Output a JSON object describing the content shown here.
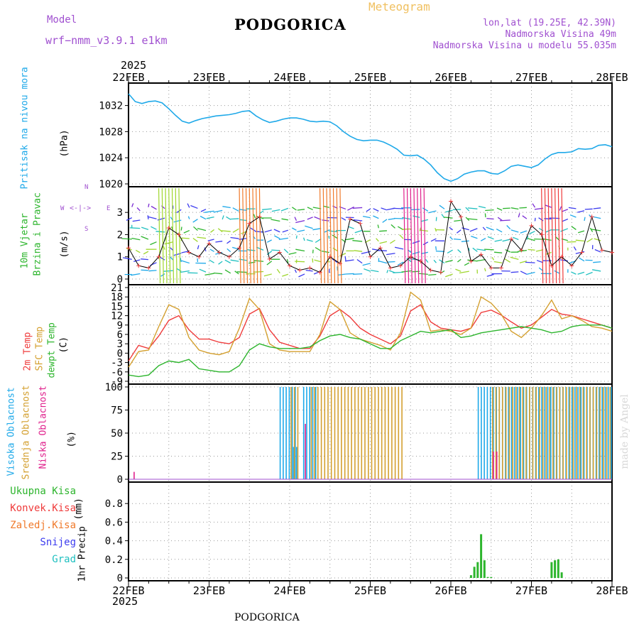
{
  "header": {
    "model_label": "Model",
    "model_name": "wrf−nmm_v3.9.1  e1km",
    "city": "PODGORICA",
    "meteogram": "Meteogram",
    "lonlat": "lon,lat (19.25E, 42.39N)",
    "altitude": "Nadmorska Visina 49m",
    "model_altitude": "Nadmorska Visina u modelu 55.035m",
    "footer_city": "PODGORICA",
    "watermark": "made by Angel"
  },
  "colors": {
    "pressure": "#1fa9e9",
    "temp2m": "#ef3b3b",
    "sfc": "#d4a030",
    "dewpt": "#2db52d",
    "purple": "#a050d0",
    "high_cloud": "#1fa9e9",
    "mid_cloud": "#d4a030",
    "low_cloud": "#e0208c",
    "precip": "#2db52d"
  },
  "chart_data": {
    "type": "line",
    "time_axis": {
      "year": "2025",
      "start": "2025-02-22T00",
      "end": "2025-02-28T00",
      "labels": [
        "22FEB",
        "23FEB",
        "24FEB",
        "25FEB",
        "26FEB",
        "27FEB",
        "28FEB"
      ]
    },
    "panels": [
      {
        "id": "pressure",
        "ylabel": [
          "Pritisak na nivou mora",
          "(hPa)"
        ],
        "ylim": [
          1020,
          1035
        ],
        "yticks": [
          1020,
          1024,
          1028,
          1032
        ],
        "series": [
          {
            "name": "Pritisak na nivou mora",
            "x_hours": [
              0,
              2,
              4,
              6,
              8,
              10,
              12,
              14,
              16,
              18,
              20,
              22,
              24,
              26,
              28,
              30,
              32,
              34,
              36,
              38,
              40,
              42,
              44,
              46,
              48,
              50,
              52,
              54,
              56,
              58,
              60,
              62,
              64,
              66,
              68,
              70,
              72,
              74,
              76,
              78,
              80,
              82,
              84,
              86,
              88,
              90,
              92,
              94,
              96,
              98,
              100,
              102,
              104,
              106,
              108,
              110,
              112,
              114,
              116,
              118,
              120,
              122,
              124,
              126,
              128,
              130,
              132,
              134,
              136,
              138,
              140,
              142,
              144
            ],
            "values": [
              1033.8,
              1032.6,
              1032.3,
              1032.6,
              1032.7,
              1032.4,
              1031.5,
              1030.5,
              1029.6,
              1029.3,
              1029.7,
              1030.0,
              1030.2,
              1030.4,
              1030.5,
              1030.6,
              1030.8,
              1031.1,
              1031.2,
              1030.4,
              1029.8,
              1029.4,
              1029.6,
              1029.9,
              1030.1,
              1030.1,
              1029.9,
              1029.6,
              1029.5,
              1029.6,
              1029.5,
              1028.9,
              1028.0,
              1027.3,
              1026.8,
              1026.6,
              1026.7,
              1026.7,
              1026.4,
              1025.9,
              1025.3,
              1024.4,
              1024.3,
              1024.4,
              1023.8,
              1022.9,
              1021.7,
              1020.8,
              1020.4,
              1020.8,
              1021.5,
              1021.8,
              1022.0,
              1022.0,
              1021.6,
              1021.5,
              1022.0,
              1022.7,
              1022.9,
              1022.7,
              1022.5,
              1022.9,
              1023.8,
              1024.5,
              1024.8,
              1024.8,
              1024.9,
              1025.4,
              1025.3,
              1025.4,
              1025.9,
              1026.0,
              1025.7
            ]
          }
        ]
      },
      {
        "id": "wind",
        "ylabel": [
          "10m Vjetar",
          "Brzina i Pravac",
          "(m/s)"
        ],
        "compass": {
          "w": "W",
          "e": "E",
          "n": "N",
          "s": "S"
        },
        "ylim": [
          0,
          3.9
        ],
        "yticks": [
          0,
          1,
          2,
          3
        ],
        "series": [
          {
            "name": "10m Vjetar",
            "x_hours": [
              0,
              3,
              6,
              9,
              12,
              15,
              18,
              21,
              24,
              27,
              30,
              33,
              36,
              39,
              42,
              45,
              48,
              51,
              54,
              57,
              60,
              63,
              66,
              69,
              72,
              75,
              78,
              81,
              84,
              87,
              90,
              93,
              96,
              99,
              102,
              105,
              108,
              111,
              114,
              117,
              120,
              123,
              126,
              129,
              132,
              135,
              138,
              141,
              144
            ],
            "values": [
              1.4,
              0.6,
              0.5,
              1.0,
              2.3,
              2.0,
              1.2,
              1.0,
              1.6,
              1.2,
              1.0,
              1.4,
              2.5,
              2.8,
              0.9,
              1.2,
              0.6,
              0.4,
              0.5,
              0.3,
              1.0,
              0.7,
              2.7,
              2.5,
              1.0,
              1.4,
              0.5,
              0.6,
              1.0,
              0.8,
              0.4,
              0.3,
              3.5,
              2.8,
              0.8,
              1.1,
              0.5,
              0.5,
              1.8,
              1.3,
              2.4,
              2.0,
              0.6,
              1.0,
              0.6,
              1.2,
              2.8,
              1.3,
              1.2
            ]
          }
        ]
      },
      {
        "id": "temperature",
        "ylabel": [
          "2m Temp",
          "SFC Temp",
          "dewpt Temp",
          "(C)"
        ],
        "ylim": [
          -9,
          21
        ],
        "yticks": [
          -9,
          -6,
          -3,
          0,
          3,
          6,
          9,
          12,
          15,
          18,
          21
        ],
        "series": [
          {
            "name": "2m Temp",
            "x_hours": [
              0,
              3,
              6,
              9,
              12,
              15,
              18,
              21,
              24,
              27,
              30,
              33,
              36,
              39,
              42,
              45,
              48,
              51,
              54,
              57,
              60,
              63,
              66,
              69,
              72,
              75,
              78,
              81,
              84,
              87,
              90,
              93,
              96,
              99,
              102,
              105,
              108,
              111,
              114,
              117,
              120,
              123,
              126,
              129,
              132,
              135,
              138,
              141,
              144
            ],
            "values": [
              -2.5,
              2.5,
              1.5,
              5.5,
              10.5,
              12,
              7.5,
              4.5,
              4.5,
              3.5,
              3,
              5,
              12.5,
              14.3,
              7.5,
              3.5,
              2.5,
              1.5,
              1.5,
              5.5,
              12,
              14,
              11.5,
              8,
              6,
              4.5,
              3,
              5.5,
              13.5,
              15.5,
              10,
              8,
              7.5,
              7,
              8,
              13,
              13.8,
              12.2,
              10,
              8,
              9,
              11.5,
              14,
              12.5,
              12,
              11,
              10,
              9,
              8
            ]
          },
          {
            "name": "SFC Temp",
            "x_hours": [
              0,
              3,
              6,
              9,
              12,
              15,
              18,
              21,
              24,
              27,
              30,
              33,
              36,
              39,
              42,
              45,
              48,
              51,
              54,
              57,
              60,
              63,
              66,
              69,
              72,
              75,
              78,
              81,
              84,
              87,
              90,
              93,
              96,
              99,
              102,
              105,
              108,
              111,
              114,
              117,
              120,
              123,
              126,
              129,
              132,
              135,
              138,
              141,
              144
            ],
            "values": [
              -4.5,
              0.5,
              1,
              8.5,
              15.5,
              14,
              5,
              1,
              0,
              -0.5,
              0.5,
              8,
              17.5,
              14,
              3,
              1,
              0.5,
              0.5,
              0.5,
              6,
              16.5,
              14,
              6.5,
              4.5,
              3.5,
              2.5,
              1,
              6.5,
              19.5,
              17,
              7,
              7.5,
              7,
              6,
              8,
              18,
              16,
              12.5,
              7,
              5,
              8,
              12,
              17,
              11,
              12,
              10.5,
              8.5,
              8,
              7
            ]
          },
          {
            "name": "dewpt Temp",
            "x_hours": [
              0,
              3,
              6,
              9,
              12,
              15,
              18,
              21,
              24,
              27,
              30,
              33,
              36,
              39,
              42,
              45,
              48,
              51,
              54,
              57,
              60,
              63,
              66,
              69,
              72,
              75,
              78,
              81,
              84,
              87,
              90,
              93,
              96,
              99,
              102,
              105,
              108,
              111,
              114,
              117,
              120,
              123,
              126,
              129,
              132,
              135,
              138,
              141,
              144
            ],
            "values": [
              -7,
              -7.5,
              -7,
              -4,
              -2.5,
              -3,
              -2,
              -5,
              -5.5,
              -6,
              -6,
              -4,
              1,
              3,
              2,
              1.5,
              1.5,
              1.5,
              2,
              4,
              5.5,
              6,
              5,
              4.5,
              3,
              1.5,
              1.5,
              4,
              5.5,
              7,
              6.5,
              7,
              7.5,
              5,
              5.5,
              6.5,
              7,
              7.5,
              8,
              8.5,
              8,
              7.5,
              6.5,
              7,
              8.5,
              9,
              9,
              9,
              8
            ]
          }
        ]
      },
      {
        "id": "cloud",
        "ylabel": [
          "Visoka Oblacnost",
          "Srednja Oblacnost",
          "Niska Oblacnost",
          "(%)"
        ],
        "ylim": [
          0,
          100
        ],
        "yticks": [
          0,
          25,
          50,
          75,
          100
        ],
        "series": [
          {
            "name": "Visoka Oblacnost",
            "value_pct_by_period": [
              {
                "from_h": 45,
                "to_h": 50,
                "pct": 100
              },
              {
                "from_h": 49,
                "to_h": 50,
                "pct": 35
              },
              {
                "from_h": 52,
                "to_h": 56,
                "pct": 100
              },
              {
                "from_h": 104,
                "to_h": 144,
                "pct": 100
              }
            ]
          },
          {
            "name": "Srednja Oblacnost",
            "value_pct_by_period": [
              {
                "from_h": 48,
                "to_h": 51,
                "pct": 100
              },
              {
                "from_h": 54,
                "to_h": 82,
                "pct": 100
              },
              {
                "from_h": 108,
                "to_h": 144,
                "pct": 100
              }
            ]
          },
          {
            "name": "Niska Oblacnost",
            "value_pct_by_period": [
              {
                "from_h": 1,
                "to_h": 2,
                "pct": 8
              },
              {
                "from_h": 52,
                "to_h": 53,
                "pct": 60
              },
              {
                "from_h": 108,
                "to_h": 110,
                "pct": 30
              }
            ]
          }
        ]
      },
      {
        "id": "precip",
        "ylabel": [
          "1hr Precip",
          "(mm)"
        ],
        "legend": [
          "Ukupna Kisa",
          "Konvek.Kisa",
          "Zaledj.Kisa",
          "Snijeg",
          "Grad"
        ],
        "legend_colors": [
          "#2db52d",
          "#ef3b3b",
          "#f07a2b",
          "#3b3bef",
          "#20c0c0"
        ],
        "ylim": [
          0,
          1.0
        ],
        "yticks": [
          0,
          0.2,
          0.4,
          0.6,
          0.8
        ],
        "ytick_labels": [
          "0",
          "0.2",
          "0.4",
          "0.6",
          "0.8"
        ],
        "series": [
          {
            "name": "Ukupna Kisa",
            "x_hours": [
              102,
              103,
              104,
              105,
              106,
              107,
              108,
              126,
              127,
              128,
              129
            ],
            "values": [
              0.03,
              0.12,
              0.17,
              0.47,
              0.19,
              0.01,
              0.01,
              0.17,
              0.19,
              0.2,
              0.06
            ]
          }
        ]
      }
    ]
  }
}
